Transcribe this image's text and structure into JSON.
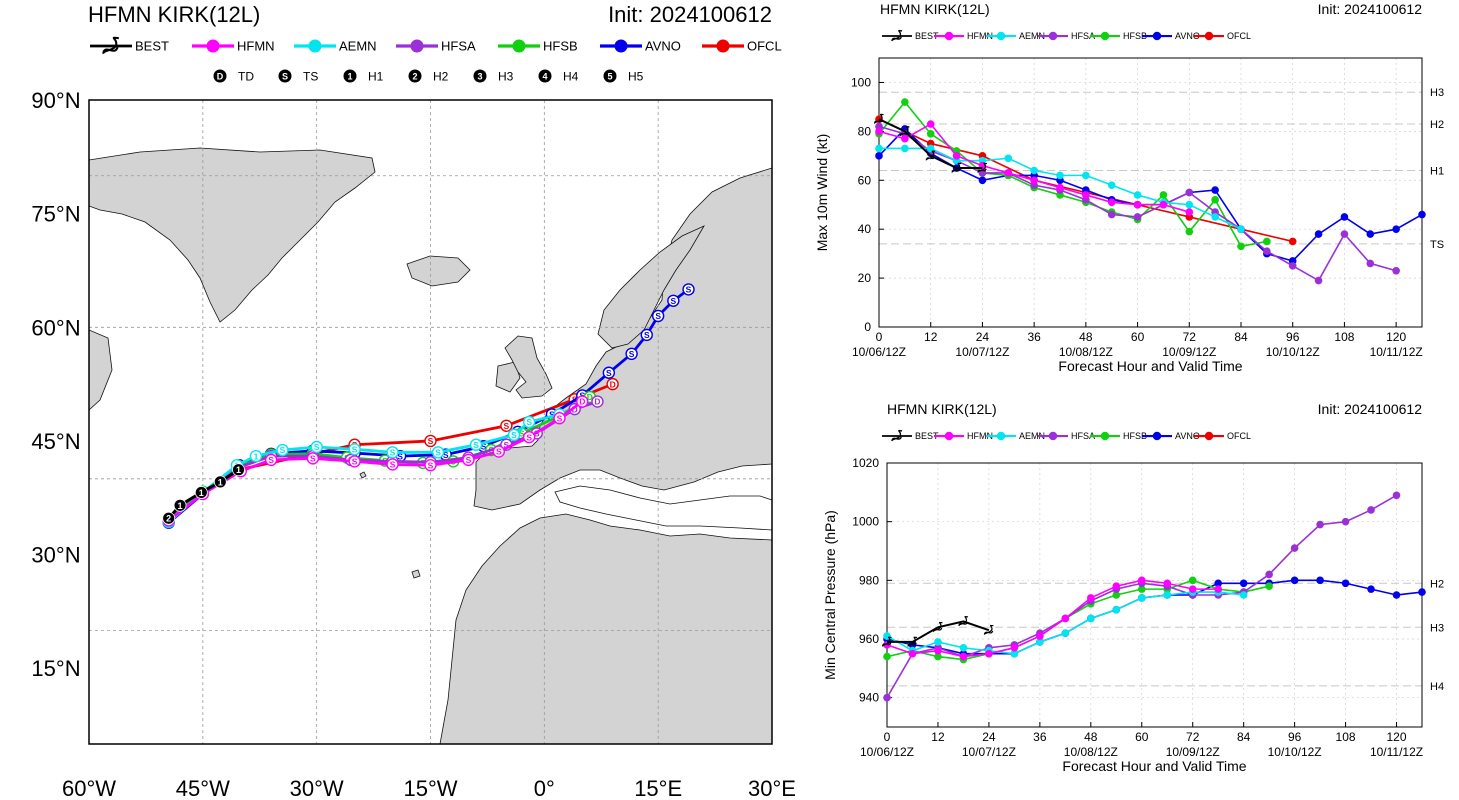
{
  "colors": {
    "BEST": "#000000",
    "HFMN": "#ff00ff",
    "AEMN": "#00e5ee",
    "HFSA": "#9b30d8",
    "HFSB": "#10d010",
    "AVNO": "#0000ee",
    "OFCL": "#ee0000",
    "land": "#d3d3d3",
    "ocean": "#ffffff",
    "grid": "#999999"
  },
  "models": [
    "BEST",
    "HFMN",
    "AEMN",
    "HFSA",
    "HFSB",
    "AVNO",
    "OFCL"
  ],
  "map": {
    "title": "HFMN KIRK(12L)",
    "init": "Init: 2024100612",
    "intensity_legend": [
      {
        "symbol": "D",
        "label": "TD"
      },
      {
        "symbol": "S",
        "label": "TS"
      },
      {
        "symbol": "1",
        "label": "H1"
      },
      {
        "symbol": "2",
        "label": "H2"
      },
      {
        "symbol": "3",
        "label": "H3"
      },
      {
        "symbol": "4",
        "label": "H4"
      },
      {
        "symbol": "5",
        "label": "H5"
      }
    ],
    "lon_range": [
      -60,
      30
    ],
    "lat_range": [
      5,
      90
    ],
    "lon_ticks": [
      {
        "v": -60,
        "label": "60°W"
      },
      {
        "v": -45,
        "label": "45°W"
      },
      {
        "v": -30,
        "label": "30°W"
      },
      {
        "v": -15,
        "label": "15°W"
      },
      {
        "v": 0,
        "label": "0°"
      },
      {
        "v": 15,
        "label": "15°E"
      },
      {
        "v": 30,
        "label": "30°E"
      }
    ],
    "lat_ticks": [
      {
        "v": 90,
        "label": "90°N"
      },
      {
        "v": 75,
        "label": "75°N"
      },
      {
        "v": 60,
        "label": "60°N"
      },
      {
        "v": 45,
        "label": "45°N"
      },
      {
        "v": 30,
        "label": "30°N"
      },
      {
        "v": 15,
        "label": "15°N"
      }
    ],
    "tracks": [
      {
        "model": "BEST",
        "points": [
          [
            -49.5,
            34.8,
            "2"
          ],
          [
            -48,
            36.5,
            "1"
          ],
          [
            -45.2,
            38.2,
            "1"
          ],
          [
            -42.7,
            39.6,
            "1"
          ],
          [
            -40.3,
            41.2,
            "1"
          ]
        ]
      },
      {
        "model": "HFMN",
        "points": [
          [
            -49.5,
            34.5,
            "2"
          ],
          [
            -45,
            38,
            "1"
          ],
          [
            -40,
            41,
            "1"
          ],
          [
            -36,
            42.5,
            "S"
          ],
          [
            -30.5,
            42.7,
            "S"
          ],
          [
            -25,
            42.3,
            "S"
          ],
          [
            -20,
            41.9,
            "S"
          ],
          [
            -15,
            41.8,
            "S"
          ],
          [
            -10,
            42.5,
            "S"
          ],
          [
            -6,
            43.6,
            "S"
          ],
          [
            -2,
            45.5,
            "S"
          ],
          [
            2,
            48,
            "S"
          ],
          [
            5,
            50.2,
            "D"
          ]
        ]
      },
      {
        "model": "AEMN",
        "points": [
          [
            -49.5,
            34.3,
            "2"
          ],
          [
            -45,
            38.2,
            "1"
          ],
          [
            -40.5,
            41.8,
            "1"
          ],
          [
            -38,
            43,
            "1"
          ],
          [
            -34.5,
            43.8,
            "S"
          ],
          [
            -30,
            44.2,
            "S"
          ],
          [
            -25,
            43.9,
            "S"
          ],
          [
            -20,
            43.5,
            "S"
          ],
          [
            -14,
            43.5,
            "S"
          ],
          [
            -9,
            44.5,
            "S"
          ],
          [
            -4,
            45.8,
            "S"
          ],
          [
            -2,
            47.5,
            "S"
          ],
          [
            2,
            48.5,
            "S"
          ]
        ]
      },
      {
        "model": "HFSA",
        "points": [
          [
            -49.5,
            34.5,
            "2"
          ],
          [
            -45,
            38.1,
            "1"
          ],
          [
            -40.3,
            41.5,
            "1"
          ],
          [
            -36,
            43,
            "S"
          ],
          [
            -30.5,
            43,
            "S"
          ],
          [
            -25.5,
            42.5,
            "S"
          ],
          [
            -20,
            42.3,
            "S"
          ],
          [
            -15,
            42.2,
            "S"
          ],
          [
            -10,
            42.8,
            "S"
          ],
          [
            -5,
            44.5,
            "S"
          ],
          [
            -1,
            46,
            "S"
          ],
          [
            4,
            49.2,
            "D"
          ],
          [
            7,
            50.2,
            "D"
          ]
        ]
      },
      {
        "model": "HFSB",
        "points": [
          [
            -49.5,
            34.6,
            "2"
          ],
          [
            -45,
            38.3,
            "1"
          ],
          [
            -40.3,
            41.6,
            "1"
          ],
          [
            -36,
            43.2,
            "S"
          ],
          [
            -30.5,
            43.3,
            "S"
          ],
          [
            -26,
            42.8,
            "S"
          ],
          [
            -21,
            42.4,
            "S"
          ],
          [
            -16,
            42.1,
            "S"
          ],
          [
            -12,
            42.3,
            "S"
          ],
          [
            -7,
            43.8,
            "S"
          ],
          [
            -3,
            46,
            "S"
          ],
          [
            2,
            48.3,
            "S"
          ],
          [
            6,
            50.8,
            "D"
          ]
        ]
      },
      {
        "model": "AVNO",
        "points": [
          [
            -49.5,
            34.2,
            "2"
          ],
          [
            -45,
            38,
            "1"
          ],
          [
            -40.2,
            41.8,
            "1"
          ],
          [
            -36,
            43.3,
            "S"
          ],
          [
            -30.5,
            43.7,
            "S"
          ],
          [
            -25,
            43.4,
            "S"
          ],
          [
            -19,
            43,
            "S"
          ],
          [
            -13,
            43.2,
            "S"
          ],
          [
            -8,
            44.3,
            "S"
          ],
          [
            -3.5,
            46.2,
            "S"
          ],
          [
            1,
            48.5,
            "S"
          ],
          [
            5,
            51,
            "S"
          ],
          [
            8.5,
            54,
            "S"
          ],
          [
            11.5,
            56.5,
            "S"
          ],
          [
            13.5,
            59,
            "S"
          ],
          [
            15,
            61.5,
            "S"
          ],
          [
            17,
            63.5,
            "S"
          ],
          [
            19,
            65,
            "S"
          ]
        ]
      },
      {
        "model": "OFCL",
        "points": [
          [
            -40.3,
            41.2,
            "1"
          ],
          [
            -25,
            44.5,
            "S"
          ],
          [
            -15,
            45,
            "S"
          ],
          [
            -5,
            47,
            "S"
          ],
          [
            4,
            50.5,
            "S"
          ],
          [
            9,
            52.5,
            "D"
          ]
        ]
      }
    ]
  },
  "chart_data": [
    {
      "type": "line",
      "title": "HFMN KIRK(12L)",
      "subtitle": "Init: 2024100612",
      "ylabel": "Max 10m Wind (kt)",
      "xlabel": "Forecast Hour and Valid Time",
      "xlim": [
        0,
        126
      ],
      "ylim": [
        0,
        110
      ],
      "x_ticks": [
        0,
        12,
        24,
        36,
        48,
        60,
        72,
        84,
        96,
        108,
        120
      ],
      "y_ticks": [
        0,
        20,
        40,
        60,
        80,
        100
      ],
      "valid_time_labels": [
        {
          "x": 0,
          "label": "10/06/12Z"
        },
        {
          "x": 24,
          "label": "10/07/12Z"
        },
        {
          "x": 48,
          "label": "10/08/12Z"
        },
        {
          "x": 72,
          "label": "10/09/12Z"
        },
        {
          "x": 96,
          "label": "10/10/12Z"
        },
        {
          "x": 120,
          "label": "10/11/12Z"
        }
      ],
      "thresholds": [
        {
          "y": 96,
          "label": "H3"
        },
        {
          "y": 83,
          "label": "H2"
        },
        {
          "y": 64,
          "label": "H1"
        },
        {
          "y": 34,
          "label": "TS"
        }
      ],
      "series": [
        {
          "name": "BEST",
          "x": [
            0,
            6,
            12,
            18,
            24
          ],
          "values": [
            85,
            80,
            70,
            65,
            65
          ]
        },
        {
          "name": "HFMN",
          "x": [
            0,
            6,
            12,
            18,
            24,
            30,
            36,
            42,
            48,
            54,
            60,
            66,
            72
          ],
          "values": [
            80,
            77,
            83,
            70,
            66,
            63,
            60,
            57,
            54,
            51,
            50,
            50,
            47
          ]
        },
        {
          "name": "AEMN",
          "x": [
            0,
            6,
            12,
            18,
            24,
            30,
            36,
            42,
            48,
            54,
            60,
            66,
            72,
            78,
            84
          ],
          "values": [
            73,
            73,
            73,
            68,
            68,
            69,
            64,
            62,
            62,
            58,
            54,
            51,
            50,
            45,
            40
          ]
        },
        {
          "name": "HFSA",
          "x": [
            0,
            6,
            12,
            18,
            24,
            30,
            36,
            42,
            48,
            54,
            60,
            66,
            72,
            78,
            84,
            90,
            96,
            102,
            108,
            114,
            120
          ],
          "values": [
            82,
            79,
            72,
            68,
            63,
            63,
            58,
            56,
            52,
            46,
            45,
            50,
            55,
            47,
            40,
            31,
            25,
            19,
            38,
            26,
            23
          ]
        },
        {
          "name": "HFSB",
          "x": [
            0,
            6,
            12,
            18,
            24,
            30,
            36,
            42,
            48,
            54,
            60,
            66,
            72,
            78,
            84,
            90
          ],
          "values": [
            79,
            92,
            79,
            72,
            63,
            62,
            57,
            54,
            51,
            47,
            44,
            54,
            39,
            52,
            33,
            35
          ]
        },
        {
          "name": "AVNO",
          "x": [
            0,
            6,
            12,
            18,
            24,
            30,
            36,
            42,
            48,
            54,
            60,
            66,
            72,
            78,
            84,
            90,
            96,
            102,
            108,
            114,
            120,
            126
          ],
          "values": [
            70,
            81,
            71,
            65,
            60,
            62,
            62,
            60,
            56,
            52,
            50,
            50,
            55,
            56,
            40,
            30,
            27,
            38,
            45,
            38,
            40,
            46
          ]
        },
        {
          "name": "OFCL",
          "x": [
            0,
            12,
            24,
            36,
            48,
            60,
            72,
            84,
            96
          ],
          "values": [
            85,
            75,
            70,
            60,
            55,
            50,
            45,
            40,
            35
          ]
        }
      ]
    },
    {
      "type": "line",
      "title": "HFMN KIRK(12L)",
      "subtitle": "Init: 2024100612",
      "ylabel": "Min Central Pressure (hPa)",
      "xlabel": "Forecast Hour and Valid Time",
      "xlim": [
        0,
        126
      ],
      "ylim": [
        930,
        1020
      ],
      "x_ticks": [
        0,
        12,
        24,
        36,
        48,
        60,
        72,
        84,
        96,
        108,
        120
      ],
      "y_ticks": [
        940,
        960,
        980,
        1000,
        1020
      ],
      "valid_time_labels": [
        {
          "x": 0,
          "label": "10/06/12Z"
        },
        {
          "x": 24,
          "label": "10/07/12Z"
        },
        {
          "x": 48,
          "label": "10/08/12Z"
        },
        {
          "x": 72,
          "label": "10/09/12Z"
        },
        {
          "x": 96,
          "label": "10/10/12Z"
        },
        {
          "x": 120,
          "label": "10/11/12Z"
        }
      ],
      "thresholds": [
        {
          "y": 979,
          "label": "H2"
        },
        {
          "y": 964,
          "label": "H3"
        },
        {
          "y": 944,
          "label": "H4"
        }
      ],
      "series": [
        {
          "name": "BEST",
          "x": [
            0,
            6,
            12,
            18,
            24
          ],
          "values": [
            959,
            959,
            964,
            966,
            963
          ]
        },
        {
          "name": "HFMN",
          "x": [
            0,
            6,
            12,
            18,
            24,
            30,
            36,
            42,
            48,
            54,
            60,
            66,
            72,
            78
          ],
          "values": [
            958,
            955,
            956,
            954,
            955,
            957,
            961,
            967,
            974,
            978,
            980,
            979,
            977,
            977
          ]
        },
        {
          "name": "AEMN",
          "x": [
            0,
            6,
            12,
            18,
            24,
            30,
            36,
            42,
            48,
            54,
            60,
            66,
            72,
            78,
            84
          ],
          "values": [
            961,
            956,
            959,
            957,
            956,
            955,
            959,
            962,
            967,
            970,
            974,
            975,
            976,
            976,
            975
          ]
        },
        {
          "name": "HFSA",
          "x": [
            0,
            6,
            12,
            18,
            24,
            30,
            36,
            42,
            48,
            54,
            60,
            66,
            72,
            78,
            84,
            90,
            96,
            102,
            108,
            114,
            120
          ],
          "values": [
            940,
            955,
            957,
            954,
            957,
            958,
            962,
            967,
            973,
            977,
            979,
            978,
            975,
            975,
            976,
            982,
            991,
            999,
            1000,
            1004,
            1009
          ]
        },
        {
          "name": "HFSB",
          "x": [
            0,
            6,
            12,
            18,
            24,
            30,
            36,
            42,
            48,
            54,
            60,
            66,
            72,
            78,
            84,
            90
          ],
          "values": [
            954,
            956,
            954,
            953,
            955,
            957,
            961,
            967,
            972,
            975,
            977,
            977,
            980,
            977,
            976,
            978
          ]
        },
        {
          "name": "AVNO",
          "x": [
            0,
            6,
            12,
            18,
            24,
            30,
            36,
            42,
            48,
            54,
            60,
            66,
            72,
            78,
            84,
            90,
            96,
            102,
            108,
            114,
            120,
            126
          ],
          "values": [
            960,
            958,
            957,
            955,
            955,
            955,
            959,
            962,
            967,
            970,
            974,
            975,
            975,
            979,
            979,
            979,
            980,
            980,
            979,
            977,
            975,
            976
          ]
        }
      ]
    }
  ]
}
